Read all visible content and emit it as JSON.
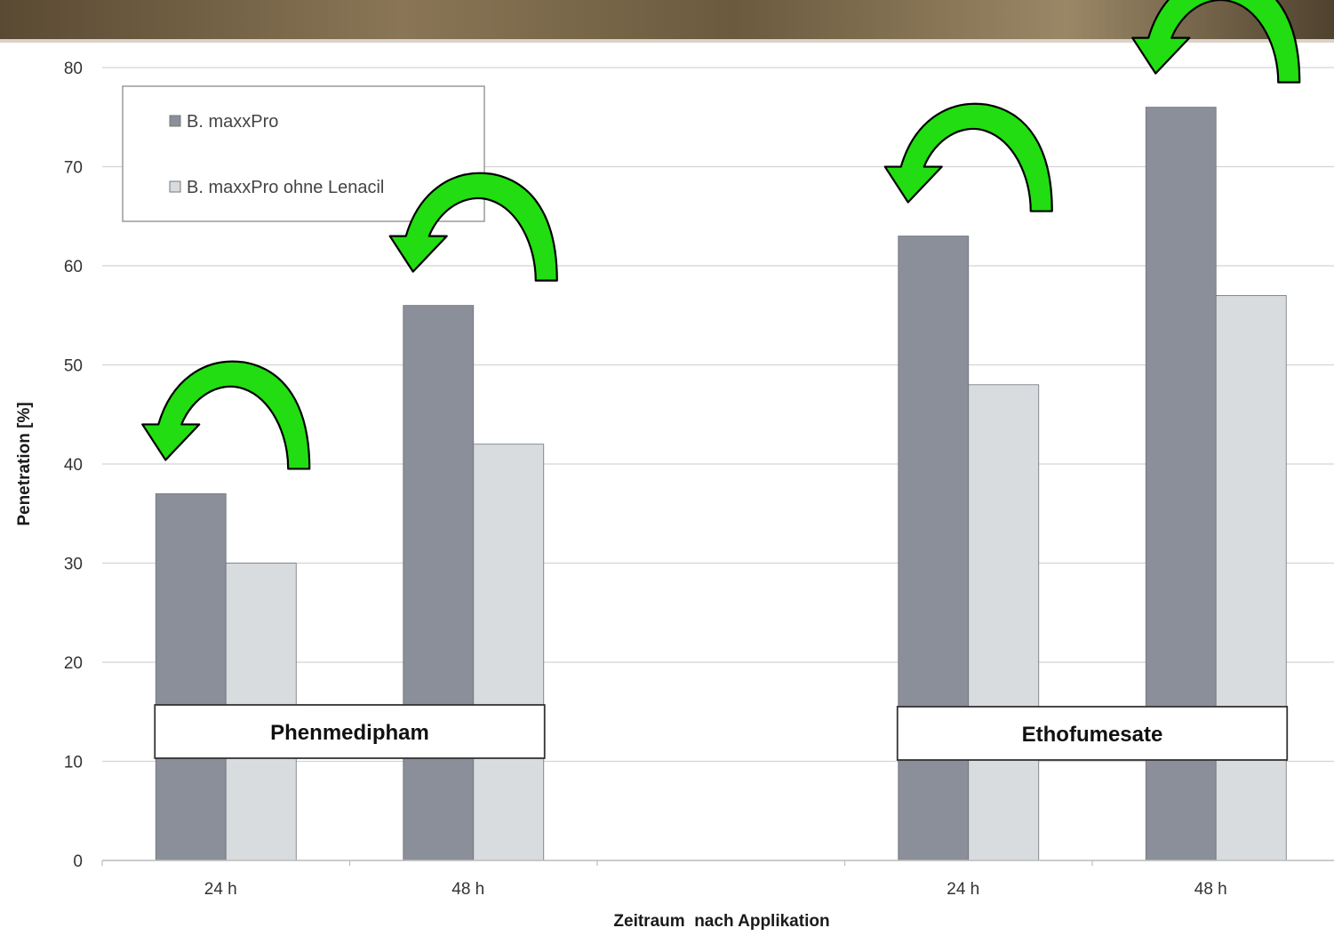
{
  "chart_data": {
    "type": "bar",
    "title": "",
    "ylabel": "Penetration [%]",
    "xlabel": "Zeitraum  nach Applikation",
    "ylim": [
      0,
      80
    ],
    "yticks": [
      0,
      10,
      20,
      30,
      40,
      50,
      60,
      70,
      80
    ],
    "grid": true,
    "legend_position": "top-left",
    "categories": [
      "24 h",
      "48 h",
      "",
      "24 h",
      "48 h"
    ],
    "groups": [
      {
        "label": "Phenmedipham",
        "categories": [
          0,
          1
        ]
      },
      {
        "label": "Ethofumesate",
        "categories": [
          3,
          4
        ]
      }
    ],
    "series": [
      {
        "name": "B. maxxPro",
        "color": "#8a8f99",
        "values": [
          37,
          56,
          null,
          63,
          76
        ]
      },
      {
        "name": "B. maxxPro ohne Lenacil",
        "color": "#d8dcdf",
        "values": [
          30,
          42,
          null,
          48,
          57
        ]
      }
    ],
    "annotation": "green curved arrow above each category pair, pointing from the lighter bar back to the darker bar",
    "colors": {
      "arrow_fill": "#22dd11",
      "arrow_stroke": "#000000",
      "header_band": "#6b5a3e"
    }
  }
}
